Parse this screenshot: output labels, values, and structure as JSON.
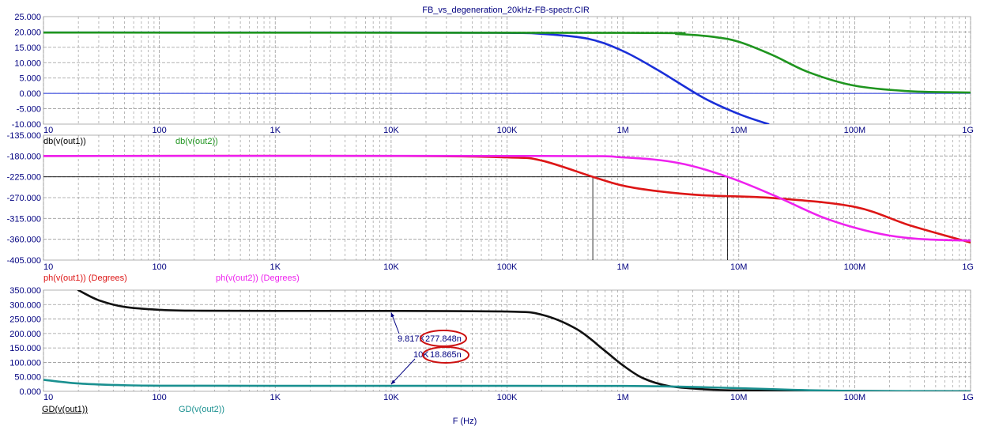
{
  "title": "FB_vs_degeneration_20kHz-FB-spectr.CIR",
  "xlabel": "F (Hz)",
  "colors": {
    "blue": "#1a2fd8",
    "green": "#1f951f",
    "red": "#dd1616",
    "magenta": "#ee22ee",
    "black": "#111111",
    "teal": "#1a9090",
    "grid": "#9a9a9a",
    "tick_text": "#000080"
  },
  "chart_data": [
    {
      "type": "line",
      "x_scale": "log",
      "xlim": [
        10,
        1000000000
      ],
      "x_tick_labels": [
        "10",
        "100",
        "1K",
        "10K",
        "100K",
        "1M",
        "10M",
        "100M",
        "1G"
      ],
      "ylim": [
        -10,
        25
      ],
      "y_tick_labels": [
        "25.000",
        "20.000",
        "15.000",
        "10.000",
        "5.000",
        "0.000",
        "-5.000",
        "-10.000"
      ],
      "grid": true,
      "title": "FB_vs_degeneration_20kHz-FB-spectr.CIR",
      "series": [
        {
          "name": "db(v(out1))",
          "color": "blue",
          "x": [
            10,
            10000,
            100000,
            200000,
            500000,
            1000000,
            2000000,
            5000000,
            10000000,
            18000000
          ],
          "values": [
            19.8,
            19.8,
            19.7,
            19.4,
            17.8,
            13.8,
            7.6,
            -1.5,
            -6.7,
            -10
          ]
        },
        {
          "name": "db(v(out2))",
          "color": "green",
          "x": [
            10,
            1000000,
            3000000,
            6000000,
            10000000,
            20000000,
            40000000,
            100000000,
            300000000,
            1000000000
          ],
          "values": [
            19.8,
            19.7,
            19.3,
            18.4,
            16.8,
            12.3,
            6.9,
            2.5,
            0.7,
            0.3
          ]
        }
      ]
    },
    {
      "type": "line",
      "x_scale": "log",
      "xlim": [
        10,
        1000000000
      ],
      "x_tick_labels": [
        "10",
        "100",
        "1K",
        "10K",
        "100K",
        "1M",
        "10M",
        "100M",
        "1G"
      ],
      "ylim": [
        -405,
        -135
      ],
      "y_tick_labels": [
        "-135.000",
        "-180.000",
        "-225.000",
        "-270.000",
        "-315.000",
        "-360.000",
        "-405.000"
      ],
      "grid": true,
      "series": [
        {
          "name": "ph(v(out1)) (Degrees)",
          "color": "red",
          "x": [
            10,
            10000,
            100000,
            200000,
            550000,
            1000000,
            2000000,
            5000000,
            20000000,
            100000000,
            300000000,
            1000000000
          ],
          "values": [
            -180,
            -180,
            -183,
            -190,
            -225,
            -244,
            -256,
            -265,
            -271,
            -290,
            -330,
            -367
          ]
        },
        {
          "name": "ph(v(out2)) (Degrees)",
          "color": "magenta",
          "x": [
            10,
            200000,
            1000000,
            3000000,
            8000000,
            20000000,
            50000000,
            100000000,
            200000000,
            400000000,
            1000000000
          ],
          "values": [
            -180,
            -180,
            -183,
            -195,
            -225,
            -265,
            -310,
            -335,
            -352,
            -360,
            -363
          ]
        }
      ]
    },
    {
      "type": "line",
      "x_scale": "log",
      "xlim": [
        10,
        1000000000
      ],
      "x_tick_labels": [
        "10",
        "100",
        "1K",
        "10K",
        "100K",
        "1M",
        "10M",
        "100M",
        "1G"
      ],
      "ylim": [
        0,
        350
      ],
      "y_tick_labels": [
        "350.000",
        "300.000",
        "250.000",
        "200.000",
        "150.000",
        "100.000",
        "50.000",
        "0.000"
      ],
      "grid": true,
      "series": [
        {
          "name": "GD(v(out1))",
          "color": "black",
          "x": [
            20,
            30,
            50,
            100,
            200,
            1000,
            10000,
            100000,
            200000,
            400000,
            700000,
            1000000,
            1500000,
            2500000,
            5000000,
            10000000,
            100000000,
            1000000000
          ],
          "values": [
            350,
            315,
            292,
            282,
            279,
            278,
            278,
            276,
            265,
            215,
            140,
            90,
            45,
            18,
            7,
            3,
            1,
            0
          ]
        },
        {
          "name": "GD(v(out2))",
          "color": "teal",
          "x": [
            10,
            20,
            50,
            100,
            1000,
            100000,
            1000000,
            3000000,
            10000000,
            30000000,
            100000000,
            1000000000
          ],
          "values": [
            40,
            27,
            21,
            19.5,
            19,
            19,
            18.6,
            16,
            11,
            5,
            1.5,
            0
          ]
        }
      ]
    }
  ],
  "annotations": [
    {
      "x": 10000,
      "y": 277.848,
      "label_x": "9.817K",
      "label_y": "277.848n"
    },
    {
      "x": 10000,
      "y": 18.865,
      "label_x": "10K",
      "label_y": "18.865n"
    }
  ]
}
